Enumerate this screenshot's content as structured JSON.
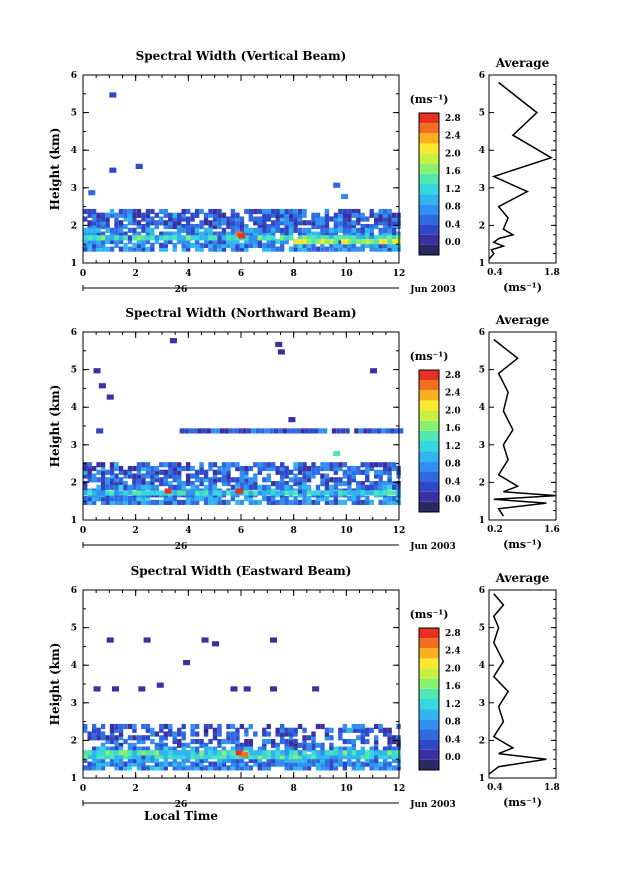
{
  "panels": [
    {
      "title": "Spectral Width (Vertical Beam)",
      "profile_title": "Average",
      "profile_xticks": [
        "0.4",
        "1.8"
      ]
    },
    {
      "title": "Spectral Width (Northward Beam)",
      "profile_title": "Average",
      "profile_xticks": [
        "0.2",
        "1.6"
      ]
    },
    {
      "title": "Spectral Width (Eastward Beam)",
      "profile_title": "Average",
      "profile_xticks": [
        "0.4",
        "1.8"
      ]
    }
  ],
  "x_ticks": [
    "0",
    "2",
    "4",
    "6",
    "8",
    "10",
    "12"
  ],
  "y_ticks": [
    "1",
    "2",
    "3",
    "4",
    "5",
    "6"
  ],
  "y_label": "Height (km)",
  "x_label": "Local Time",
  "day_label": "26",
  "month_year": "Jun 2003",
  "colorbar_unit": "(ms⁻¹)",
  "colorbar_ticks": [
    "0.0",
    "0.4",
    "0.8",
    "1.2",
    "1.6",
    "2.0",
    "2.4",
    "2.8"
  ],
  "profile_unit": "(ms⁻¹)",
  "colors": {
    "scale": [
      "#2a2a60",
      "#3a30a0",
      "#3048c8",
      "#2f6ae0",
      "#2f90f0",
      "#2fb5f0",
      "#36d8e0",
      "#50e8b0",
      "#8af070",
      "#c8f040",
      "#f8e830",
      "#f8b020",
      "#f07020",
      "#e83020"
    ]
  },
  "chart_data": [
    {
      "type": "heatmap",
      "title": "Spectral Width (Vertical Beam)",
      "xlabel": "Local Time",
      "ylabel": "Height (km)",
      "xlim": [
        0,
        12
      ],
      "ylim": [
        1,
        6
      ],
      "colorbar": {
        "unit": "ms-1",
        "range": [
          0.0,
          2.8
        ]
      },
      "cells": [
        [
          1,
          5.4,
          0.4
        ],
        [
          1,
          3.4,
          0.5
        ],
        [
          2,
          3.5,
          0.5
        ],
        [
          0.2,
          2.8,
          0.6
        ],
        [
          9.5,
          3.0,
          0.7
        ],
        [
          9.8,
          2.7,
          0.8
        ],
        [
          10.2,
          2.2,
          0.8
        ],
        [
          5.8,
          1.7,
          2.6
        ],
        [
          5.9,
          1.65,
          2.8
        ],
        [
          9.8,
          1.5,
          2.2
        ]
      ],
      "bands": [
        {
          "x": [
            0,
            12
          ],
          "y": [
            1.9,
            2.4
          ],
          "density": 0.75,
          "value": 0.6
        },
        {
          "x": [
            0,
            12
          ],
          "y": [
            1.3,
            1.9
          ],
          "density": 0.8,
          "value": 0.8
        },
        {
          "x": [
            0,
            12
          ],
          "y": [
            1.6,
            1.7
          ],
          "density": 0.95,
          "value": 1.3
        },
        {
          "x": [
            8,
            12
          ],
          "y": [
            1.5,
            1.6
          ],
          "density": 0.9,
          "value": 1.9
        }
      ],
      "profile": {
        "x": [
          0.4,
          0.5,
          0.45,
          0.7,
          0.5,
          0.6,
          0.9,
          0.7,
          0.8,
          0.6,
          1.2,
          0.5,
          1.7,
          0.9,
          1.4,
          0.6
        ],
        "y": [
          1.1,
          1.25,
          1.35,
          1.45,
          1.55,
          1.65,
          1.75,
          1.9,
          2.2,
          2.5,
          2.9,
          3.3,
          3.8,
          4.4,
          5.0,
          5.8
        ],
        "xlim": [
          0.4,
          1.8
        ]
      }
    },
    {
      "type": "heatmap",
      "title": "Spectral Width (Northward Beam)",
      "xlabel": "Local Time",
      "ylabel": "Height (km)",
      "xlim": [
        0,
        12
      ],
      "ylim": [
        1,
        6
      ],
      "colorbar": {
        "unit": "ms-1",
        "range": [
          0.0,
          2.8
        ]
      },
      "cells": [
        [
          3.3,
          5.7,
          0.2
        ],
        [
          7.3,
          5.6,
          0.2
        ],
        [
          7.4,
          5.4,
          0.2
        ],
        [
          0.4,
          4.9,
          0.3
        ],
        [
          10.9,
          4.9,
          0.2
        ],
        [
          0.6,
          4.5,
          0.3
        ],
        [
          0.9,
          4.2,
          0.3
        ],
        [
          7.8,
          3.6,
          0.3
        ],
        [
          0.5,
          3.3,
          0.4
        ],
        [
          9.5,
          2.7,
          1.6
        ],
        [
          5.8,
          1.7,
          2.7
        ],
        [
          3.1,
          1.7,
          2.8
        ]
      ],
      "bands": [
        {
          "x": [
            3.5,
            12
          ],
          "y": [
            3.3,
            3.4
          ],
          "density": 0.9,
          "value": 0.5
        },
        {
          "x": [
            0,
            12
          ],
          "y": [
            1.9,
            2.5
          ],
          "density": 0.7,
          "value": 0.6
        },
        {
          "x": [
            0,
            12
          ],
          "y": [
            1.4,
            1.9
          ],
          "density": 0.8,
          "value": 0.8
        },
        {
          "x": [
            0,
            12
          ],
          "y": [
            1.65,
            1.75
          ],
          "density": 0.95,
          "value": 1.2
        }
      ],
      "profile": {
        "x": [
          0.5,
          0.4,
          1.4,
          0.3,
          1.6,
          0.5,
          0.8,
          0.4,
          0.6,
          0.5,
          0.7,
          0.5,
          0.6,
          0.4,
          0.8,
          0.3
        ],
        "y": [
          1.1,
          1.3,
          1.45,
          1.55,
          1.65,
          1.75,
          1.9,
          2.2,
          2.6,
          3.0,
          3.4,
          3.9,
          4.4,
          4.9,
          5.3,
          5.8
        ],
        "xlim": [
          0.2,
          1.6
        ]
      }
    },
    {
      "type": "heatmap",
      "title": "Spectral Width (Eastward Beam)",
      "xlabel": "Local Time",
      "ylabel": "Height (km)",
      "xlim": [
        0,
        12
      ],
      "ylim": [
        1,
        6
      ],
      "colorbar": {
        "unit": "ms-1",
        "range": [
          0.0,
          2.8
        ]
      },
      "cells": [
        [
          0.9,
          4.6,
          0.3
        ],
        [
          2.3,
          4.6,
          0.3
        ],
        [
          4.5,
          4.6,
          0.3
        ],
        [
          7.1,
          4.6,
          0.3
        ],
        [
          4.9,
          4.5,
          0.3
        ],
        [
          3.8,
          4.0,
          0.3
        ],
        [
          0.4,
          3.3,
          0.3
        ],
        [
          1.1,
          3.3,
          0.3
        ],
        [
          2.1,
          3.3,
          0.3
        ],
        [
          2.8,
          3.4,
          0.3
        ],
        [
          5.6,
          3.3,
          0.3
        ],
        [
          6.1,
          3.3,
          0.3
        ],
        [
          7.1,
          3.3,
          0.3
        ],
        [
          8.7,
          3.3,
          0.3
        ],
        [
          10.0,
          2.2,
          1.0
        ],
        [
          5.8,
          1.6,
          2.7
        ],
        [
          6.0,
          1.55,
          2.6
        ]
      ],
      "bands": [
        {
          "x": [
            0,
            12
          ],
          "y": [
            1.8,
            2.4
          ],
          "density": 0.55,
          "value": 0.5
        },
        {
          "x": [
            0,
            12
          ],
          "y": [
            1.2,
            1.8
          ],
          "density": 0.8,
          "value": 0.8
        },
        {
          "x": [
            0,
            12
          ],
          "y": [
            1.5,
            1.65
          ],
          "density": 0.95,
          "value": 1.3
        }
      ],
      "profile": {
        "x": [
          0.4,
          0.6,
          1.6,
          0.6,
          0.9,
          0.5,
          0.7,
          0.6,
          0.8,
          0.5,
          0.7,
          0.5,
          0.6,
          0.5,
          0.7,
          0.5
        ],
        "y": [
          1.1,
          1.3,
          1.5,
          1.65,
          1.8,
          2.1,
          2.5,
          2.9,
          3.3,
          3.7,
          4.1,
          4.6,
          5.0,
          5.3,
          5.6,
          5.9
        ],
        "xlim": [
          0.4,
          1.8
        ]
      }
    }
  ]
}
